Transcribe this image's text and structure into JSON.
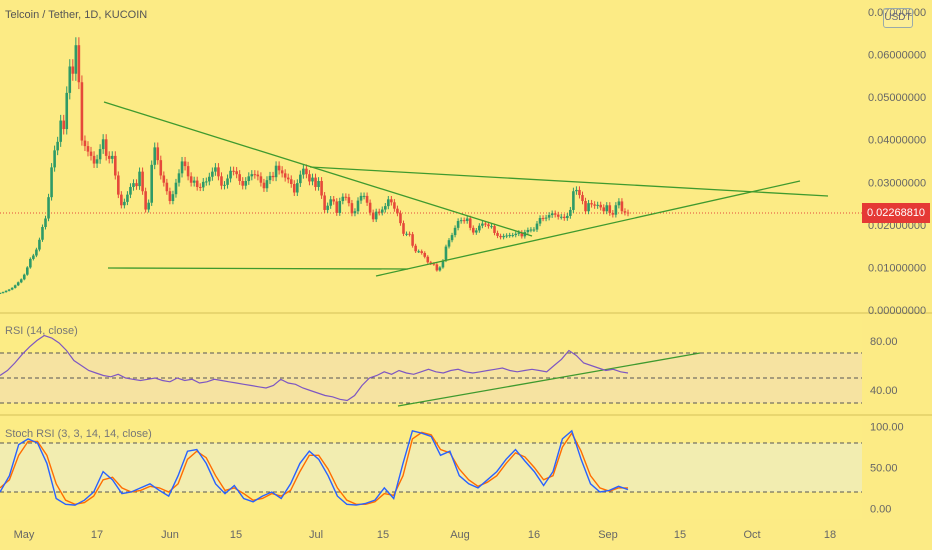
{
  "header": {
    "title": "Telcoin / Tether, 1D, KUCOIN",
    "currency_button": "USDT"
  },
  "last_price_label": "0.02268810",
  "rsi_label": "RSI (14, close)",
  "stoch_label": "Stoch RSI (3, 3, 14, 14, close)",
  "colors": {
    "background": "#fceb85",
    "pane_band": "#f6e3a1",
    "up": "#2e9a67",
    "down": "#e5493a",
    "trendline": "#3f9a2e",
    "rsi_line": "#7e57c2",
    "stoch_k": "#2962ff",
    "stoch_d": "#ff6d00",
    "price_tag": "#e53935"
  },
  "chart_data": [
    {
      "type": "candlestick",
      "title": "Telcoin / Tether, 1D, KUCOIN",
      "y_ticks": [
        "0.07000000",
        "0.06000000",
        "0.05000000",
        "0.04000000",
        "0.03000000",
        "0.02000000",
        "0.01000000",
        "0.00000000"
      ],
      "x_ticks": [
        "May",
        "17",
        "Jun",
        "15",
        "Jul",
        "15",
        "Aug",
        "16",
        "Sep",
        "15",
        "Oct",
        "18"
      ],
      "last_price": 0.0226881,
      "close_approx": [
        0.004,
        0.0042,
        0.0045,
        0.0048,
        0.0052,
        0.0058,
        0.0065,
        0.0072,
        0.0083,
        0.01,
        0.012,
        0.0128,
        0.0142,
        0.0165,
        0.0195,
        0.0215,
        0.0265,
        0.0335,
        0.0375,
        0.0395,
        0.0445,
        0.0425,
        0.051,
        0.0572,
        0.0555,
        0.0622,
        0.0535,
        0.0398,
        0.0385,
        0.0372,
        0.0362,
        0.0344,
        0.0354,
        0.0378,
        0.0401,
        0.0362,
        0.0355,
        0.0362,
        0.0316,
        0.0271,
        0.0246,
        0.0254,
        0.0271,
        0.0289,
        0.0298,
        0.0291,
        0.0325,
        0.0279,
        0.0236,
        0.0252,
        0.0341,
        0.0382,
        0.0352,
        0.0316,
        0.0299,
        0.0279,
        0.0256,
        0.0272,
        0.0299,
        0.0321,
        0.0349,
        0.0338,
        0.0314,
        0.0299,
        0.0304,
        0.0289,
        0.0288,
        0.0301,
        0.0302,
        0.0313,
        0.0325,
        0.0335,
        0.0314,
        0.0292,
        0.0294,
        0.0309,
        0.0327,
        0.0326,
        0.0319,
        0.0303,
        0.0292,
        0.0303,
        0.0314,
        0.0319,
        0.0318,
        0.0314,
        0.0299,
        0.0286,
        0.0305,
        0.0315,
        0.0312,
        0.0339,
        0.0328,
        0.0321,
        0.0311,
        0.0307,
        0.0296,
        0.0276,
        0.0298,
        0.0318,
        0.0332,
        0.0319,
        0.0302,
        0.0311,
        0.0289,
        0.0303,
        0.0269,
        0.0235,
        0.0245,
        0.026,
        0.0255,
        0.0228,
        0.0256,
        0.0266,
        0.0265,
        0.0251,
        0.0227,
        0.0232,
        0.0257,
        0.0268,
        0.0268,
        0.0252,
        0.0229,
        0.0213,
        0.0231,
        0.0229,
        0.0236,
        0.0244,
        0.026,
        0.0253,
        0.0238,
        0.0227,
        0.0204,
        0.0179,
        0.0179,
        0.0178,
        0.0151,
        0.0138,
        0.0138,
        0.0134,
        0.0125,
        0.0112,
        0.0109,
        0.0107,
        0.0093,
        0.01,
        0.0116,
        0.0149,
        0.0164,
        0.0176,
        0.0193,
        0.0209,
        0.0211,
        0.0209,
        0.0215,
        0.0193,
        0.0182,
        0.0187,
        0.0198,
        0.0203,
        0.0201,
        0.0197,
        0.0197,
        0.0181,
        0.0174,
        0.0171,
        0.0174,
        0.0175,
        0.0176,
        0.0176,
        0.0179,
        0.0182,
        0.0173,
        0.0183,
        0.0188,
        0.0189,
        0.0189,
        0.0203,
        0.0216,
        0.0215,
        0.0217,
        0.0223,
        0.0227,
        0.0224,
        0.0219,
        0.0219,
        0.0216,
        0.0221,
        0.0235,
        0.0279,
        0.0282,
        0.027,
        0.0256,
        0.0232,
        0.0251,
        0.0248,
        0.0245,
        0.0247,
        0.0241,
        0.0232,
        0.0246,
        0.0228,
        0.0224,
        0.0246,
        0.0255,
        0.0232,
        0.0229,
        0.0227
      ]
    },
    {
      "type": "line",
      "title": "RSI (14, close)",
      "y_ticks": [
        "80.00",
        "40.00"
      ],
      "bands": {
        "upper": 70,
        "middle": 50,
        "lower": 30
      },
      "values_approx": [
        52,
        56,
        62,
        69,
        75,
        80,
        84,
        82,
        78,
        72,
        64,
        60,
        56,
        54,
        52,
        51,
        53,
        50,
        49,
        48,
        49,
        50,
        48,
        47,
        50,
        48,
        49,
        46,
        47,
        49,
        48,
        47,
        46,
        45,
        44,
        43,
        42,
        44,
        49,
        46,
        45,
        42,
        40,
        38,
        36,
        35,
        33,
        32,
        36,
        44,
        50,
        52,
        55,
        53,
        56,
        54,
        53,
        55,
        57,
        55,
        54,
        56,
        57,
        55,
        54,
        55,
        56,
        57,
        58,
        56,
        55,
        56,
        57,
        56,
        55,
        60,
        65,
        72,
        68,
        62,
        60,
        58,
        56,
        57,
        55,
        54
      ]
    },
    {
      "type": "line",
      "title": "Stoch RSI (3, 3, 14, 14, close)",
      "y_ticks": [
        "100.00",
        "50.00",
        "0.00"
      ],
      "bands": {
        "upper": 80,
        "middle": 50,
        "lower": 20
      },
      "series": [
        {
          "name": "K",
          "values_approx": [
            20,
            40,
            78,
            85,
            80,
            55,
            12,
            5,
            4,
            10,
            20,
            45,
            35,
            18,
            20,
            25,
            30,
            22,
            15,
            40,
            70,
            72,
            55,
            30,
            18,
            28,
            12,
            8,
            15,
            20,
            12,
            30,
            55,
            70,
            60,
            40,
            15,
            5,
            4,
            6,
            10,
            25,
            12,
            55,
            95,
            92,
            88,
            65,
            70,
            40,
            30,
            25,
            35,
            45,
            60,
            72,
            58,
            45,
            28,
            45,
            85,
            95,
            60,
            30,
            20,
            22,
            27,
            23
          ]
        },
        {
          "name": "D",
          "values_approx": [
            25,
            35,
            65,
            82,
            82,
            65,
            30,
            10,
            5,
            7,
            15,
            35,
            38,
            25,
            20,
            22,
            27,
            25,
            20,
            30,
            60,
            70,
            62,
            40,
            22,
            25,
            18,
            10,
            12,
            18,
            15,
            22,
            45,
            65,
            65,
            48,
            25,
            10,
            5,
            5,
            8,
            18,
            16,
            40,
            85,
            93,
            90,
            72,
            68,
            48,
            35,
            27,
            32,
            40,
            55,
            68,
            63,
            50,
            35,
            40,
            75,
            92,
            70,
            40,
            25,
            21,
            25,
            25
          ]
        }
      ]
    }
  ]
}
